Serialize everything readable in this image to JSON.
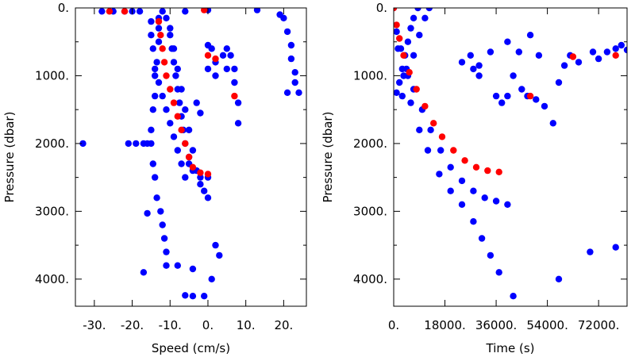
{
  "colors": {
    "cast": "#0000ff",
    "highlight": "#ff0000"
  },
  "chart_data": [
    {
      "type": "scatter",
      "xlabel": "Speed (cm/s)",
      "ylabel": "Pressure (dbar)",
      "xlim": [
        -35,
        26
      ],
      "ylim": [
        4400,
        0
      ],
      "y_inverted": true,
      "x_ticks": [
        -30,
        -20,
        -10,
        0,
        10,
        20
      ],
      "x_tick_labels": [
        "-30.",
        "-20.",
        "-10.",
        "0.",
        "10.",
        "20."
      ],
      "y_ticks": [
        0,
        1000,
        2000,
        3000,
        4000
      ],
      "y_tick_labels": [
        "0.",
        "1000.",
        "2000.",
        "3000.",
        "4000."
      ],
      "grid": false,
      "series": [
        {
          "color": "#0000ff",
          "points": [
            [
              -13,
              150
            ],
            [
              -13,
              300
            ],
            [
              -13,
              500
            ],
            [
              -13.5,
              800
            ],
            [
              -14,
              1000
            ],
            [
              -14,
              1300
            ],
            [
              -14.5,
              1500
            ],
            [
              -15,
              1800
            ],
            [
              -15,
              2000
            ],
            [
              -14.5,
              2300
            ],
            [
              -14,
              2500
            ],
            [
              -13.5,
              2800
            ],
            [
              -12.5,
              3000
            ],
            [
              -12,
              3200
            ],
            [
              -11.5,
              3400
            ],
            [
              -11,
              3600
            ],
            [
              -11,
              3800
            ],
            [
              -11,
              150
            ],
            [
              -10,
              400
            ],
            [
              -9.5,
              600
            ],
            [
              -9,
              800
            ],
            [
              -8.5,
              1000
            ],
            [
              -8,
              1200
            ],
            [
              -7.5,
              1400
            ],
            [
              -7,
              1600
            ],
            [
              -6.5,
              1800
            ],
            [
              -6,
              2000
            ],
            [
              -5,
              2200
            ],
            [
              -4,
              2400
            ],
            [
              -2,
              2500
            ],
            [
              0,
              2500
            ],
            [
              -10,
              300
            ],
            [
              -9,
              600
            ],
            [
              -8,
              900
            ],
            [
              -7,
              1200
            ],
            [
              -6,
              1500
            ],
            [
              -5,
              1800
            ],
            [
              -4,
              2100
            ],
            [
              -3,
              2400
            ],
            [
              -2,
              2600
            ],
            [
              -1,
              2700
            ],
            [
              0,
              2800
            ],
            [
              -15,
              200
            ],
            [
              -15,
              400
            ],
            [
              -14.5,
              600
            ],
            [
              -14,
              900
            ],
            [
              -13,
              1100
            ],
            [
              -12,
              1300
            ],
            [
              -11,
              1500
            ],
            [
              -10,
              1700
            ],
            [
              -9,
              1900
            ],
            [
              -8,
              2100
            ],
            [
              -7,
              2300
            ],
            [
              -6,
              2500
            ],
            [
              -17,
              2000
            ],
            [
              -19,
              2000
            ],
            [
              -21,
              2000
            ],
            [
              -16,
              2000
            ],
            [
              -33,
              2000
            ],
            [
              -28,
              50
            ],
            [
              -25,
              50
            ],
            [
              -22,
              50
            ],
            [
              -20,
              50
            ],
            [
              -18,
              50
            ],
            [
              -12,
              50
            ],
            [
              -6,
              50
            ],
            [
              0,
              30
            ],
            [
              -17,
              3900
            ],
            [
              -16,
              3030
            ],
            [
              -8,
              3800
            ],
            [
              -4,
              3850
            ],
            [
              -6,
              4240
            ],
            [
              -4,
              4250
            ],
            [
              -1,
              4250
            ],
            [
              2,
              3500
            ],
            [
              3,
              3650
            ],
            [
              1,
              4000
            ],
            [
              0,
              550
            ],
            [
              1,
              600
            ],
            [
              2,
              800
            ],
            [
              2,
              1000
            ],
            [
              0,
              900
            ],
            [
              5,
              600
            ],
            [
              6,
              700
            ],
            [
              7,
              900
            ],
            [
              7,
              1100
            ],
            [
              8,
              1400
            ],
            [
              8,
              1700
            ],
            [
              4,
              700
            ],
            [
              5,
              900
            ],
            [
              20,
              150
            ],
            [
              21,
              350
            ],
            [
              22,
              550
            ],
            [
              22,
              750
            ],
            [
              23,
              950
            ],
            [
              23,
              1100
            ],
            [
              24,
              1250
            ],
            [
              21,
              1250
            ],
            [
              19,
              100
            ],
            [
              13,
              30
            ],
            [
              -2,
              1550
            ],
            [
              -3,
              1400
            ],
            [
              -5,
              2300
            ]
          ]
        },
        {
          "color": "#ff0000",
          "points": [
            [
              -13,
              200
            ],
            [
              -12.5,
              400
            ],
            [
              -12,
              600
            ],
            [
              -11.5,
              800
            ],
            [
              -11,
              1000
            ],
            [
              -10,
              1200
            ],
            [
              -9,
              1400
            ],
            [
              -8,
              1600
            ],
            [
              -7,
              1800
            ],
            [
              -6,
              2000
            ],
            [
              -5,
              2200
            ],
            [
              -4,
              2350
            ],
            [
              -2,
              2430
            ],
            [
              0,
              2450
            ],
            [
              -26,
              50
            ],
            [
              -22,
              50
            ],
            [
              -1,
              30
            ],
            [
              0,
              700
            ],
            [
              2,
              750
            ],
            [
              7,
              1300
            ]
          ]
        }
      ]
    },
    {
      "type": "scatter",
      "xlabel": "Time (s)",
      "ylabel": "Pressure (dbar)",
      "xlim": [
        0,
        82000
      ],
      "ylim": [
        4400,
        0
      ],
      "y_inverted": true,
      "x_ticks": [
        0,
        18000,
        36000,
        54000,
        72000
      ],
      "x_tick_labels": [
        "0.",
        "18000.",
        "36000.",
        "54000.",
        "72000."
      ],
      "y_ticks": [
        0,
        1000,
        2000,
        3000,
        4000
      ],
      "y_tick_labels": [
        "0.",
        "1000.",
        "2000.",
        "3000.",
        "4000."
      ],
      "grid": false,
      "series": [
        {
          "color": "#0000ff",
          "points": [
            [
              0,
              0
            ],
            [
              1000,
              350
            ],
            [
              2500,
              600
            ],
            [
              4500,
              900
            ],
            [
              7000,
              1200
            ],
            [
              10000,
              1500
            ],
            [
              13000,
              1800
            ],
            [
              16500,
              2100
            ],
            [
              20000,
              2350
            ],
            [
              24000,
              2550
            ],
            [
              28000,
              2700
            ],
            [
              32000,
              2800
            ],
            [
              36000,
              2850
            ],
            [
              40000,
              2900
            ],
            [
              1500,
              600
            ],
            [
              3500,
              1000
            ],
            [
              6000,
              1400
            ],
            [
              9000,
              1800
            ],
            [
              12000,
              2100
            ],
            [
              16000,
              2450
            ],
            [
              20000,
              2700
            ],
            [
              24000,
              2900
            ],
            [
              28000,
              3150
            ],
            [
              31000,
              3400
            ],
            [
              34000,
              3650
            ],
            [
              37000,
              3900
            ],
            [
              1000,
              1250
            ],
            [
              2000,
              1100
            ],
            [
              3000,
              900
            ],
            [
              4000,
              700
            ],
            [
              5000,
              500
            ],
            [
              6000,
              300
            ],
            [
              7000,
              150
            ],
            [
              8500,
              0
            ],
            [
              3000,
              1300
            ],
            [
              5000,
              1000
            ],
            [
              7000,
              700
            ],
            [
              9000,
              400
            ],
            [
              11000,
              150
            ],
            [
              12500,
              0
            ],
            [
              27000,
              700
            ],
            [
              30000,
              850
            ],
            [
              34000,
              650
            ],
            [
              40000,
              500
            ],
            [
              44000,
              650
            ],
            [
              48000,
              400
            ],
            [
              51000,
              700
            ],
            [
              42000,
              1000
            ],
            [
              45000,
              1200
            ],
            [
              47000,
              1300
            ],
            [
              50000,
              1350
            ],
            [
              53000,
              1450
            ],
            [
              56000,
              1700
            ],
            [
              58000,
              1100
            ],
            [
              60000,
              850
            ],
            [
              62000,
              700
            ],
            [
              65000,
              800
            ],
            [
              70000,
              650
            ],
            [
              72000,
              750
            ],
            [
              75000,
              650
            ],
            [
              78000,
              600
            ],
            [
              80000,
              550
            ],
            [
              82000,
              620
            ],
            [
              24000,
              800
            ],
            [
              28000,
              900
            ],
            [
              30000,
              1000
            ],
            [
              36000,
              1300
            ],
            [
              38000,
              1400
            ],
            [
              40000,
              1300
            ],
            [
              42000,
              4250
            ],
            [
              58000,
              4000
            ],
            [
              69000,
              3600
            ],
            [
              78000,
              3530
            ]
          ]
        },
        {
          "color": "#ff0000",
          "points": [
            [
              0,
              0
            ],
            [
              1000,
              250
            ],
            [
              2000,
              450
            ],
            [
              3500,
              700
            ],
            [
              5500,
              950
            ],
            [
              8000,
              1200
            ],
            [
              11000,
              1450
            ],
            [
              14000,
              1700
            ],
            [
              17000,
              1900
            ],
            [
              21000,
              2100
            ],
            [
              25000,
              2250
            ],
            [
              29000,
              2350
            ],
            [
              33000,
              2400
            ],
            [
              37000,
              2420
            ],
            [
              48000,
              1300
            ],
            [
              63000,
              720
            ],
            [
              78000,
              700
            ]
          ]
        }
      ]
    }
  ]
}
